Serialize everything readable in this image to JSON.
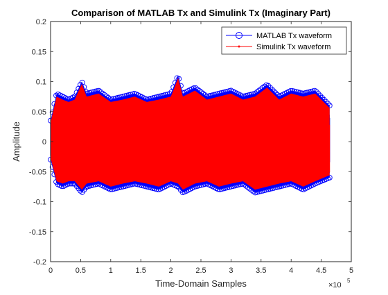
{
  "chart_data": {
    "type": "line",
    "title": "Comparison of MATLAB Tx and Simulink Tx (Imaginary Part)",
    "xlabel": "Time-Domain Samples",
    "ylabel": "Amplitude",
    "x_exponent_label": "×10",
    "x_exponent_power": "5",
    "xlim": [
      0,
      500000
    ],
    "ylim": [
      -0.2,
      0.2
    ],
    "x_ticks": [
      0,
      50000,
      100000,
      150000,
      200000,
      250000,
      300000,
      350000,
      400000,
      450000,
      500000
    ],
    "x_tick_labels": [
      "0",
      "0.5",
      "1",
      "1.5",
      "2",
      "2.5",
      "3",
      "3.5",
      "4",
      "4.5",
      "5"
    ],
    "y_ticks": [
      -0.2,
      -0.15,
      -0.1,
      -0.05,
      0,
      0.05,
      0.1,
      0.15,
      0.2
    ],
    "y_tick_labels": [
      "-0.2",
      "-0.15",
      "-0.1",
      "-0.05",
      "0",
      "0.05",
      "0.1",
      "0.15",
      "0.2"
    ],
    "grid": false,
    "legend_position": "top-right",
    "n_samples": 464000,
    "series": [
      {
        "name": "MATLAB Tx waveform",
        "color": "#0000ff",
        "marker": "circle",
        "envelope_x": [
          0,
          10000,
          20000,
          30000,
          40000,
          52000,
          60000,
          80000,
          100000,
          120000,
          140000,
          160000,
          180000,
          200000,
          212000,
          220000,
          240000,
          260000,
          280000,
          300000,
          320000,
          340000,
          360000,
          380000,
          400000,
          420000,
          440000,
          464000
        ],
        "envelope_upper": [
          0.035,
          0.08,
          0.075,
          0.07,
          0.075,
          0.1,
          0.08,
          0.085,
          0.07,
          0.075,
          0.08,
          0.07,
          0.075,
          0.08,
          0.11,
          0.08,
          0.09,
          0.075,
          0.08,
          0.085,
          0.075,
          0.08,
          0.095,
          0.075,
          0.085,
          0.08,
          0.085,
          0.06
        ],
        "envelope_lower": [
          -0.03,
          -0.07,
          -0.075,
          -0.07,
          -0.07,
          -0.085,
          -0.075,
          -0.07,
          -0.08,
          -0.075,
          -0.07,
          -0.075,
          -0.08,
          -0.07,
          -0.075,
          -0.085,
          -0.075,
          -0.07,
          -0.08,
          -0.075,
          -0.07,
          -0.085,
          -0.08,
          -0.075,
          -0.07,
          -0.08,
          -0.07,
          -0.06
        ]
      },
      {
        "name": "Simulink Tx waveform",
        "color": "#ff0000",
        "marker": "point",
        "envelope_x": [
          0,
          10000,
          20000,
          30000,
          40000,
          52000,
          60000,
          80000,
          100000,
          120000,
          140000,
          160000,
          180000,
          200000,
          212000,
          220000,
          240000,
          260000,
          280000,
          300000,
          320000,
          340000,
          360000,
          380000,
          400000,
          420000,
          440000,
          464000
        ],
        "envelope_upper": [
          0.032,
          0.075,
          0.07,
          0.066,
          0.07,
          0.096,
          0.075,
          0.08,
          0.066,
          0.07,
          0.075,
          0.066,
          0.07,
          0.075,
          0.106,
          0.075,
          0.085,
          0.07,
          0.075,
          0.08,
          0.07,
          0.075,
          0.09,
          0.07,
          0.08,
          0.075,
          0.08,
          0.056
        ],
        "envelope_lower": [
          -0.027,
          -0.066,
          -0.07,
          -0.066,
          -0.066,
          -0.08,
          -0.07,
          -0.066,
          -0.075,
          -0.07,
          -0.066,
          -0.07,
          -0.075,
          -0.066,
          -0.07,
          -0.08,
          -0.07,
          -0.066,
          -0.075,
          -0.07,
          -0.066,
          -0.08,
          -0.075,
          -0.07,
          -0.066,
          -0.075,
          -0.066,
          -0.056
        ]
      }
    ]
  }
}
